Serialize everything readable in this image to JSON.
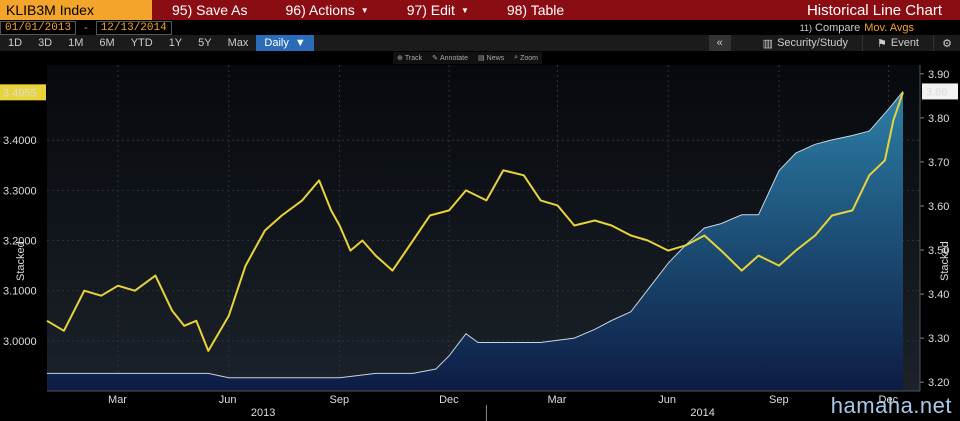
{
  "menubar": {
    "ticker": "KLIB3M Index",
    "items": [
      {
        "label": "95) Save As",
        "caret": false
      },
      {
        "label": "96) Actions",
        "caret": true
      },
      {
        "label": "97) Edit",
        "caret": true
      },
      {
        "label": "98) Table",
        "caret": false
      }
    ],
    "title": "Historical Line Chart"
  },
  "datebar": {
    "start": "01/01/2013",
    "sep": "-",
    "end": "12/13/2014",
    "compare_num": "11)",
    "compare": "Compare",
    "movavg": "Mov. Avgs"
  },
  "toolbar": {
    "ranges": [
      "1D",
      "3D",
      "1M",
      "6M",
      "YTD",
      "1Y",
      "5Y",
      "Max"
    ],
    "period": "Daily",
    "collapse": "«",
    "security": "Security/Study",
    "event": "Event"
  },
  "tools": [
    "Track",
    "Annotate",
    "News",
    "Zoom"
  ],
  "watermark": "hamaha.net",
  "colors": {
    "ticker_bg": "#f3a42a",
    "menubar_bg": "#8b0d14",
    "line": "#e8d33a",
    "area": "#1e6a8f"
  },
  "chart_data": {
    "type": "line",
    "x_ticks": [
      "Mar",
      "Jun",
      "Sep",
      "Dec",
      "Mar",
      "Jun",
      "Sep",
      "Dec"
    ],
    "years": [
      "2013",
      "2014"
    ],
    "left_axis": {
      "ticks": [
        "3.0000",
        "3.1000",
        "3.2000",
        "3.3000",
        "3.4000"
      ],
      "ylim": [
        2.9,
        3.55
      ],
      "label": "Stacked",
      "last_value": "3.4955"
    },
    "right_axis": {
      "ticks": [
        "3.20",
        "3.30",
        "3.40",
        "3.50",
        "3.60",
        "3.70",
        "3.80",
        "3.90"
      ],
      "ylim": [
        3.18,
        3.92
      ],
      "label": "Stacked",
      "last_value": "3.86"
    },
    "series": [
      {
        "axis": "left",
        "style": "line",
        "x": [
          "2013-01-01",
          "2013-01-15",
          "2013-02-01",
          "2013-02-15",
          "2013-03-01",
          "2013-03-15",
          "2013-04-01",
          "2013-04-15",
          "2013-04-25",
          "2013-05-05",
          "2013-05-15",
          "2013-06-01",
          "2013-06-15",
          "2013-07-01",
          "2013-07-15",
          "2013-08-01",
          "2013-08-15",
          "2013-08-25",
          "2013-09-01",
          "2013-09-10",
          "2013-09-20",
          "2013-10-01",
          "2013-10-15",
          "2013-11-01",
          "2013-11-15",
          "2013-12-01",
          "2013-12-15",
          "2014-01-01",
          "2014-01-15",
          "2014-02-01",
          "2014-02-15",
          "2014-03-01",
          "2014-03-15",
          "2014-04-01",
          "2014-04-15",
          "2014-05-01",
          "2014-05-15",
          "2014-06-01",
          "2014-06-15",
          "2014-07-01",
          "2014-07-15",
          "2014-08-01",
          "2014-08-15",
          "2014-09-01",
          "2014-09-15",
          "2014-10-01",
          "2014-10-15",
          "2014-11-01",
          "2014-11-15",
          "2014-11-28",
          "2014-12-05",
          "2014-12-13"
        ],
        "values": [
          3.04,
          3.02,
          3.1,
          3.09,
          3.11,
          3.1,
          3.13,
          3.06,
          3.03,
          3.04,
          2.98,
          3.05,
          3.15,
          3.22,
          3.25,
          3.28,
          3.32,
          3.26,
          3.23,
          3.18,
          3.2,
          3.17,
          3.14,
          3.2,
          3.25,
          3.26,
          3.3,
          3.28,
          3.34,
          3.33,
          3.28,
          3.27,
          3.23,
          3.24,
          3.23,
          3.21,
          3.2,
          3.18,
          3.19,
          3.21,
          3.18,
          3.14,
          3.17,
          3.15,
          3.18,
          3.21,
          3.25,
          3.26,
          3.33,
          3.36,
          3.44,
          3.4955
        ]
      },
      {
        "axis": "right",
        "style": "area",
        "x": [
          "2013-01-01",
          "2013-04-01",
          "2013-05-15",
          "2013-06-01",
          "2013-06-15",
          "2013-09-01",
          "2013-10-01",
          "2013-11-01",
          "2013-11-20",
          "2013-12-01",
          "2013-12-15",
          "2013-12-25",
          "2014-01-15",
          "2014-02-15",
          "2014-03-15",
          "2014-04-01",
          "2014-04-15",
          "2014-05-01",
          "2014-05-15",
          "2014-06-01",
          "2014-06-15",
          "2014-07-01",
          "2014-07-15",
          "2014-08-01",
          "2014-08-15",
          "2014-09-01",
          "2014-09-15",
          "2014-10-01",
          "2014-10-15",
          "2014-11-01",
          "2014-11-15",
          "2014-12-01",
          "2014-12-13"
        ],
        "values": [
          3.22,
          3.22,
          3.22,
          3.21,
          3.21,
          3.21,
          3.22,
          3.22,
          3.23,
          3.26,
          3.31,
          3.29,
          3.29,
          3.29,
          3.3,
          3.32,
          3.34,
          3.36,
          3.41,
          3.47,
          3.51,
          3.55,
          3.56,
          3.58,
          3.58,
          3.68,
          3.72,
          3.74,
          3.75,
          3.76,
          3.77,
          3.82,
          3.86
        ]
      }
    ]
  }
}
